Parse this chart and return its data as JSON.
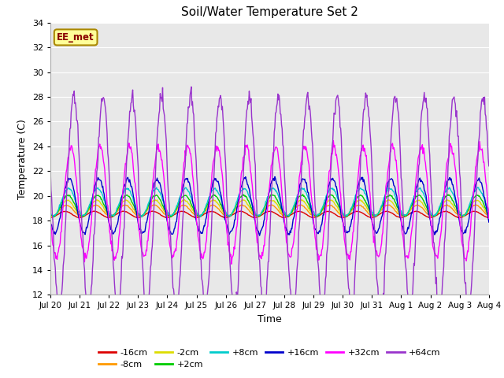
{
  "title": "Soil/Water Temperature Set 2",
  "xlabel": "Time",
  "ylabel": "Temperature (C)",
  "ylim": [
    12,
    34
  ],
  "yticks": [
    12,
    14,
    16,
    18,
    20,
    22,
    24,
    26,
    28,
    30,
    32,
    34
  ],
  "fig_bg_color": "#ffffff",
  "plot_bg_color": "#e8e8e8",
  "annotation_text": "EE_met",
  "annotation_bg": "#ffff99",
  "annotation_border": "#aa8800",
  "tick_labels": [
    "Jul 20",
    "Jul 21",
    "Jul 22",
    "Jul 23",
    "Jul 24",
    "Jul 25",
    "Jul 26",
    "Jul 27",
    "Jul 28",
    "Jul 29",
    "Jul 30",
    "Jul 31",
    "Aug 1",
    "Aug 2",
    "Aug 3",
    "Aug 4"
  ],
  "series": {
    "-16cm": {
      "color": "#dd0000",
      "amplitude": 0.25,
      "base": 18.5,
      "phase": 0.0
    },
    "-8cm": {
      "color": "#ff9900",
      "amplitude": 0.45,
      "base": 18.8,
      "phase": 0.05
    },
    "-2cm": {
      "color": "#dddd00",
      "amplitude": 0.65,
      "base": 19.0,
      "phase": 0.08
    },
    "+2cm": {
      "color": "#00cc00",
      "amplitude": 0.85,
      "base": 19.2,
      "phase": 0.1
    },
    "+8cm": {
      "color": "#00cccc",
      "amplitude": 1.1,
      "base": 19.5,
      "phase": 0.12
    },
    "+16cm": {
      "color": "#0000cc",
      "amplitude": 2.2,
      "base": 19.2,
      "phase": 0.15
    },
    "+32cm": {
      "color": "#ff00ff",
      "amplitude": 4.5,
      "base": 19.5,
      "phase": 0.2
    },
    "+64cm": {
      "color": "#9933cc",
      "amplitude": 8.5,
      "base": 19.5,
      "phase": 0.3
    }
  },
  "n_days": 15,
  "points_per_day": 48,
  "legend_order": [
    "-16cm",
    "-8cm",
    "-2cm",
    "+2cm",
    "+8cm",
    "+16cm",
    "+32cm",
    "+64cm"
  ]
}
